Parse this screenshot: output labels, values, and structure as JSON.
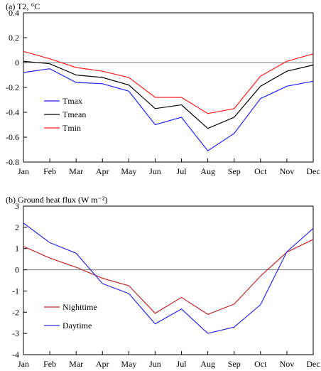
{
  "chart_data": [
    {
      "type": "line",
      "title": "(a) T2, °C",
      "categories": [
        "Jan",
        "Feb",
        "Mar",
        "Apr",
        "May",
        "Jun",
        "Jul",
        "Aug",
        "Sep",
        "Oct",
        "Nov",
        "Dec"
      ],
      "ylim": [
        -0.8,
        0.4
      ],
      "yticks": [
        "0.4",
        "0.2",
        "0",
        "-0.2",
        "-0.4",
        "-0.6",
        "-0.8"
      ],
      "ytick_values": [
        0.4,
        0.2,
        0,
        -0.2,
        -0.4,
        -0.6,
        -0.8
      ],
      "zero_line": true,
      "legend": "lower-left",
      "series": [
        {
          "name": "Tmax",
          "color": "#1f1fff",
          "values": [
            -0.08,
            -0.05,
            -0.16,
            -0.17,
            -0.23,
            -0.5,
            -0.44,
            -0.71,
            -0.57,
            -0.29,
            -0.19,
            -0.15
          ]
        },
        {
          "name": "Tmean",
          "color": "#000000",
          "values": [
            0.01,
            -0.01,
            -0.1,
            -0.12,
            -0.18,
            -0.37,
            -0.34,
            -0.53,
            -0.44,
            -0.19,
            -0.07,
            -0.02
          ]
        },
        {
          "name": "Tmin",
          "color": "#ff1f1f",
          "values": [
            0.09,
            0.03,
            -0.04,
            -0.07,
            -0.12,
            -0.28,
            -0.28,
            -0.41,
            -0.37,
            -0.11,
            0.01,
            0.07
          ]
        }
      ]
    },
    {
      "type": "line",
      "title": "(b) Ground heat flux (W m⁻²)",
      "categories": [
        "Jan",
        "Feb",
        "Mar",
        "Apr",
        "May",
        "Jun",
        "Jul",
        "Aug",
        "Sep",
        "Oct",
        "Nov",
        "Dec"
      ],
      "ylim": [
        -4,
        3
      ],
      "yticks": [
        "3",
        "2",
        "1",
        "0",
        "-1",
        "-2",
        "-3",
        "-4"
      ],
      "ytick_values": [
        3,
        2,
        1,
        0,
        -1,
        -2,
        -3,
        -4
      ],
      "zero_line": true,
      "legend": "lower-left",
      "series": [
        {
          "name": "Nighttime",
          "color": "#c0282a",
          "values": [
            1.1,
            0.55,
            0.12,
            -0.4,
            -0.75,
            -2.05,
            -1.3,
            -2.1,
            -1.62,
            -0.3,
            0.83,
            1.43
          ]
        },
        {
          "name": "Daytime",
          "color": "#2a2ae0",
          "values": [
            2.2,
            1.28,
            0.78,
            -0.65,
            -1.12,
            -2.55,
            -1.85,
            -3.0,
            -2.7,
            -1.65,
            0.85,
            1.95
          ]
        }
      ]
    }
  ]
}
